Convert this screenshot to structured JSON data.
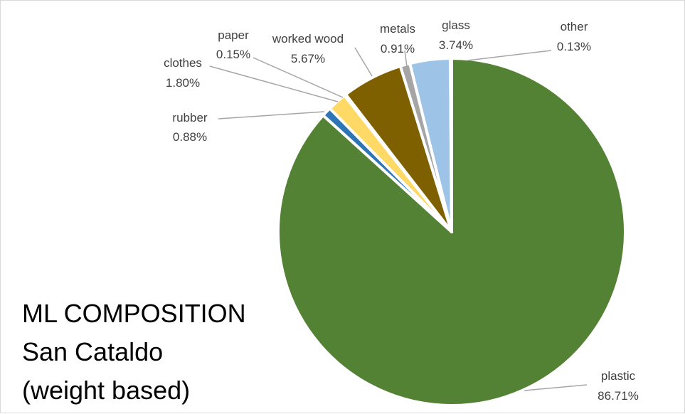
{
  "chart_data": {
    "type": "pie",
    "title_lines": [
      "ML COMPOSITION",
      "San Cataldo",
      "(weight based)"
    ],
    "start_angle_deg": 0,
    "direction": "clockwise",
    "slices": [
      {
        "name": "plastic",
        "value": 86.71,
        "label": "86.71%",
        "color": "#548235"
      },
      {
        "name": "rubber",
        "value": 0.88,
        "label": "0.88%",
        "color": "#2e75b6"
      },
      {
        "name": "clothes",
        "value": 1.8,
        "label": "1.80%",
        "color": "#ffd966"
      },
      {
        "name": "paper",
        "value": 0.15,
        "label": "0.15%",
        "color": "#ffffff"
      },
      {
        "name": "worked wood",
        "value": 5.67,
        "label": "5.67%",
        "color": "#7f6000"
      },
      {
        "name": "metals",
        "value": 0.91,
        "label": "0.91%",
        "color": "#a5a5a5"
      },
      {
        "name": "glass",
        "value": 3.74,
        "label": "3.74%",
        "color": "#9dc3e6"
      },
      {
        "name": "other",
        "value": 0.13,
        "label": "0.13%",
        "color": "#ffffff"
      }
    ],
    "legend": "none"
  }
}
